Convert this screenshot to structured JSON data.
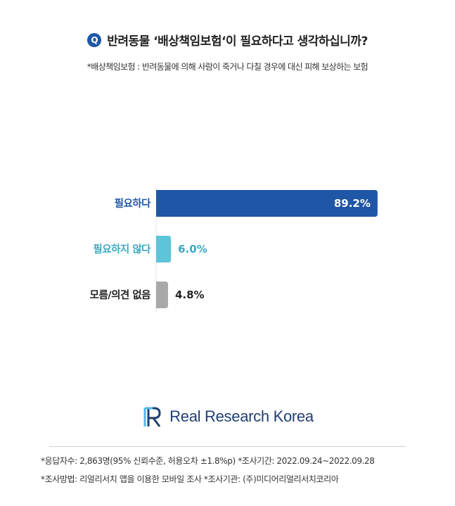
{
  "question": {
    "badge": "Q",
    "text": "반려동물 ‘배상책임보험‘이 필요하다고 생각하십니까?"
  },
  "subtitle": "*배상책임보험 : 반려동물에 의해 사람이 죽거나 다칠 경우에 대신 피해 보상하는 보험",
  "chart_data": {
    "type": "bar",
    "orientation": "horizontal",
    "categories": [
      "필요하다",
      "필요하지 않다",
      "모름/의견 없음"
    ],
    "values": [
      89.2,
      6.0,
      4.8
    ],
    "value_labels": [
      "89.2%",
      "6.0%",
      "4.8%"
    ],
    "colors": [
      "#1f56a6",
      "#5ec4d8",
      "#a9a9a9"
    ],
    "label_colors": [
      "#1f56a6",
      "#3aa8c0",
      "#222222"
    ],
    "xlim": [
      0,
      100
    ],
    "grid": false
  },
  "logo": {
    "text": "Real Research Korea",
    "colors": {
      "primary": "#1f3f73",
      "accent": "#4bb8e8"
    }
  },
  "footer": {
    "line1": "*응답자수: 2,863명(95% 신뢰수준, 허용오차 ±1.8%p)  *조사기간: 2022.09.24~2022.09.28",
    "line2": "*조사방법: 리얼리서치 앱을 이용한 모바일 조사  *조사기관: (주)미디어리얼리서치코리아"
  }
}
